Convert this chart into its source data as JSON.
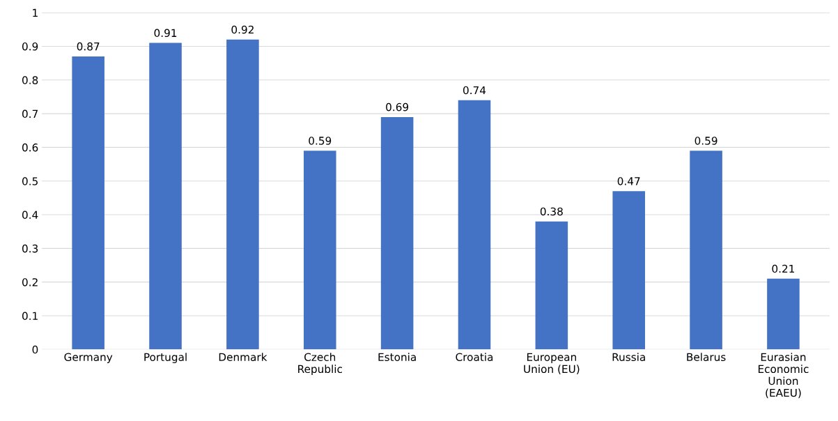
{
  "chart_data": {
    "type": "bar",
    "categories": [
      "Germany",
      "Portugal",
      "Denmark",
      "Czech Republic",
      "Estonia",
      "Croatia",
      "European Union (EU)",
      "Russia",
      "Belarus",
      "Eurasian Economic Union (EAEU)"
    ],
    "values": [
      0.87,
      0.91,
      0.92,
      0.59,
      0.69,
      0.74,
      0.38,
      0.47,
      0.59,
      0.21
    ],
    "color": "#4472c4",
    "ylim": [
      0,
      1
    ],
    "yticks": [
      0,
      0.1,
      0.2,
      0.3,
      0.4,
      0.5,
      0.6,
      0.7,
      0.8,
      0.9,
      1
    ],
    "grid": "y",
    "data_labels": true
  }
}
